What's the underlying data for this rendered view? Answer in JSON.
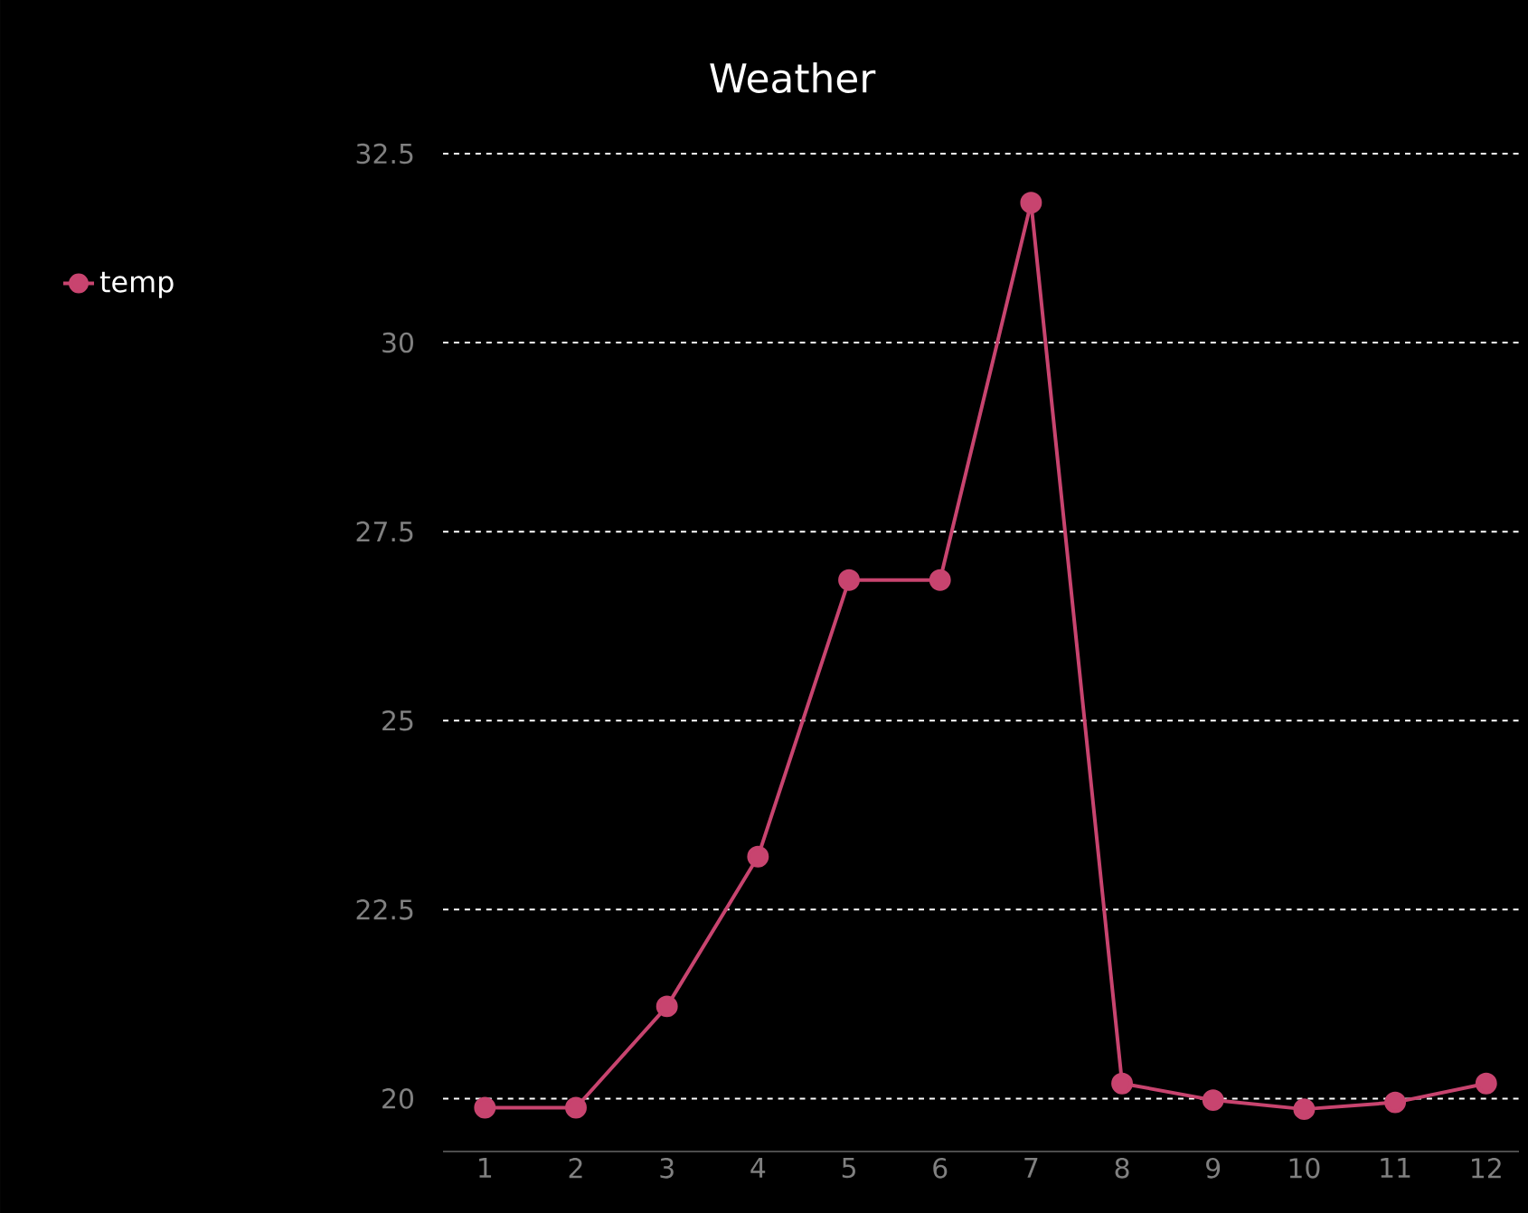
{
  "chart_data": {
    "type": "line",
    "title": "Weather",
    "categories": [
      "1",
      "2",
      "3",
      "4",
      "5",
      "6",
      "7",
      "8",
      "9",
      "10",
      "11",
      "12"
    ],
    "series": [
      {
        "name": "temp",
        "color": "#c8446f",
        "values": [
          19.88,
          19.88,
          21.22,
          23.2,
          26.86,
          26.86,
          31.85,
          20.2,
          19.98,
          19.86,
          19.95,
          20.2
        ]
      }
    ],
    "ylim": [
      19.3,
      32.5
    ],
    "yticks": [
      20,
      22.5,
      25,
      27.5,
      30,
      32.5
    ],
    "grid": "y",
    "legend": "top left",
    "marker": "circle",
    "line_style": "solid"
  }
}
